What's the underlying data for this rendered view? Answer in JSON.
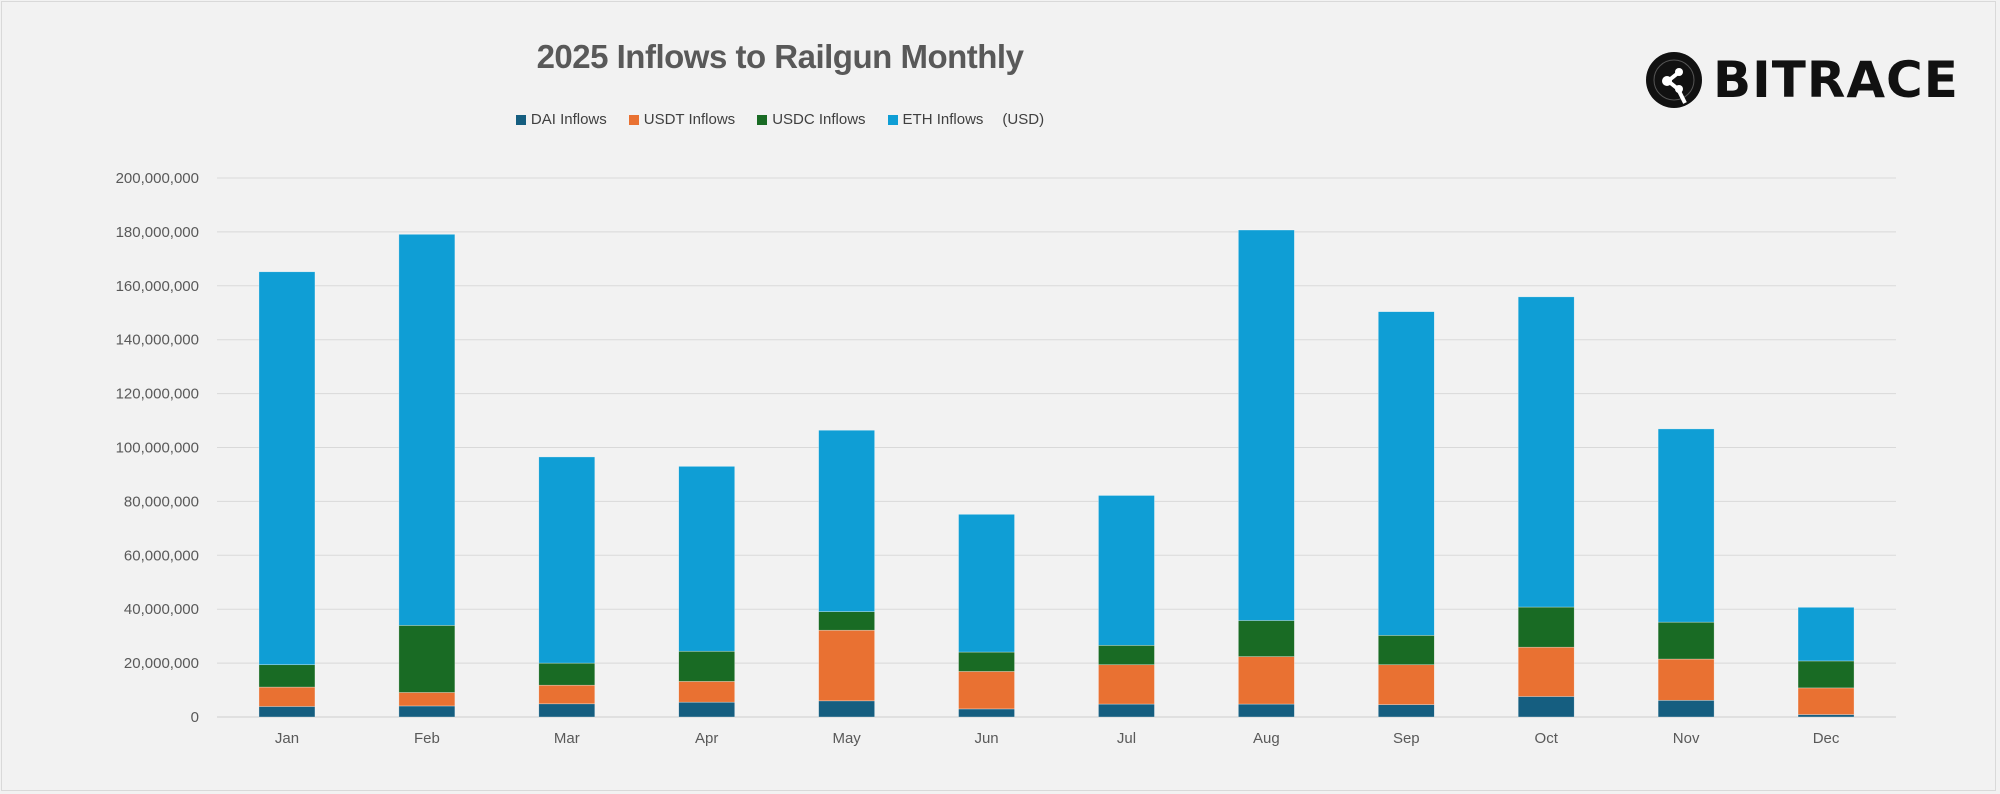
{
  "brand": {
    "logo_text": "BITRACE"
  },
  "chart_data": {
    "type": "bar",
    "stacked": true,
    "title": "2025 Inflows to Railgun Monthly",
    "xlabel": "",
    "ylabel": "",
    "unit_note": "(USD)",
    "ylim": [
      0,
      200000000
    ],
    "yticks": [
      0,
      20000000,
      40000000,
      60000000,
      80000000,
      100000000,
      120000000,
      140000000,
      160000000,
      180000000,
      200000000
    ],
    "ytick_labels": [
      "0",
      "20,000,000",
      "40,000,000",
      "60,000,000",
      "80,000,000",
      "100,000,000",
      "120,000,000",
      "140,000,000",
      "160,000,000",
      "180,000,000",
      "200,000,000"
    ],
    "grid": true,
    "legend_position": "top",
    "categories": [
      "Jan",
      "Feb",
      "Mar",
      "Apr",
      "May",
      "Jun",
      "Jul",
      "Aug",
      "Sep",
      "Oct",
      "Nov",
      "Dec"
    ],
    "series": [
      {
        "name": "DAI Inflows",
        "color": "#155e80",
        "values": [
          3900000,
          4100000,
          4900000,
          5500000,
          6000000,
          3000000,
          4800000,
          4800000,
          4600000,
          7600000,
          6200000,
          900000
        ]
      },
      {
        "name": "USDT Inflows",
        "color": "#e97132",
        "values": [
          7200000,
          5000000,
          6900000,
          7700000,
          26200000,
          13900000,
          14600000,
          17600000,
          14800000,
          18300000,
          15300000,
          9900000
        ]
      },
      {
        "name": "USDC Inflows",
        "color": "#196b24",
        "values": [
          8300000,
          24900000,
          8200000,
          11200000,
          6900000,
          7200000,
          7200000,
          13400000,
          10900000,
          14900000,
          13700000,
          10000000
        ]
      },
      {
        "name": "ETH Inflows",
        "color": "#0f9ed5",
        "values": [
          145800000,
          145100000,
          76500000,
          68600000,
          67300000,
          51100000,
          55600000,
          144900000,
          120100000,
          115100000,
          71700000,
          19900000
        ]
      }
    ]
  }
}
